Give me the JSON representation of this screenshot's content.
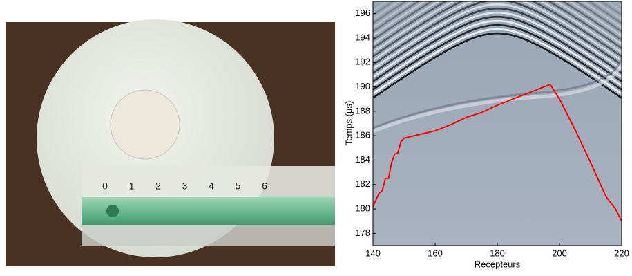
{
  "photo": {
    "ruler_labels": [
      "0",
      "1",
      "2",
      "3",
      "4",
      "5",
      "6"
    ]
  },
  "chart_data": {
    "type": "line",
    "xlabel": "Recepteurs",
    "ylabel": "Temps (µs)",
    "x": [
      140,
      142,
      143,
      144,
      145,
      146,
      147,
      148,
      149,
      150,
      155,
      160,
      165,
      170,
      175,
      180,
      185,
      190,
      195,
      197,
      200,
      205,
      210,
      215,
      218,
      220
    ],
    "series": [
      {
        "color": "#ff0000",
        "values": [
          180.2,
          181.3,
          181.5,
          182.5,
          182.5,
          183.8,
          184.5,
          184.6,
          185.5,
          185.8,
          186.1,
          186.4,
          186.9,
          187.5,
          187.9,
          188.5,
          189.0,
          189.5,
          190.0,
          190.2,
          189.0,
          186.5,
          183.8,
          181.0,
          180.0,
          179.0
        ]
      }
    ],
    "xlim": [
      140,
      220
    ],
    "ylim": [
      177,
      197
    ],
    "xticks": [
      140,
      160,
      180,
      200,
      220
    ],
    "yticks": [
      178,
      180,
      182,
      184,
      186,
      188,
      190,
      192,
      194,
      196
    ]
  }
}
